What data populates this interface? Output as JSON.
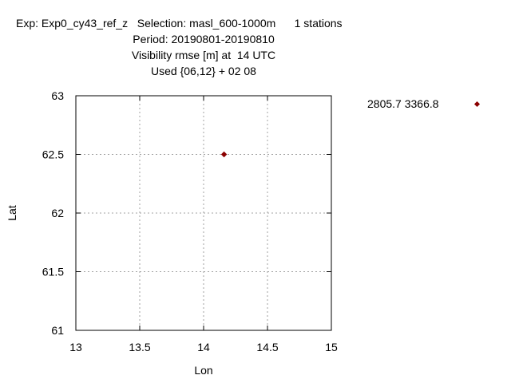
{
  "title_lines": [
    "Exp: Exp0_cy43_ref_z   Selection: masl_600-1000m      1 stations",
    "Period: 20190801-20190810",
    "Visibility rmse [m] at  14 UTC",
    "Used {06,12} + 02 08"
  ],
  "legend_text": "2805.7 3366.8",
  "colors": {
    "marker": "#8b0000",
    "grid": "#a0a0a0",
    "axis": "#000000"
  },
  "chart_data": {
    "type": "scatter",
    "title": "Exp: Exp0_cy43_ref_z   Selection: masl_600-1000m      1 stations",
    "xlabel": "Lon",
    "ylabel": "Lat",
    "xlim": [
      13,
      15
    ],
    "ylim": [
      61,
      63
    ],
    "xticks": [
      13,
      13.5,
      14,
      14.5,
      15
    ],
    "yticks": [
      61,
      61.5,
      62,
      62.5,
      63
    ],
    "xtick_labels": [
      "13",
      "13.5",
      "14",
      "14.5",
      "15"
    ],
    "ytick_labels": [
      "61",
      "61.5",
      "62",
      "62.5",
      "63"
    ],
    "grid": true,
    "legend_position": "outside-right",
    "series": [
      {
        "x": [
          14.16
        ],
        "y": [
          62.5
        ]
      }
    ]
  }
}
